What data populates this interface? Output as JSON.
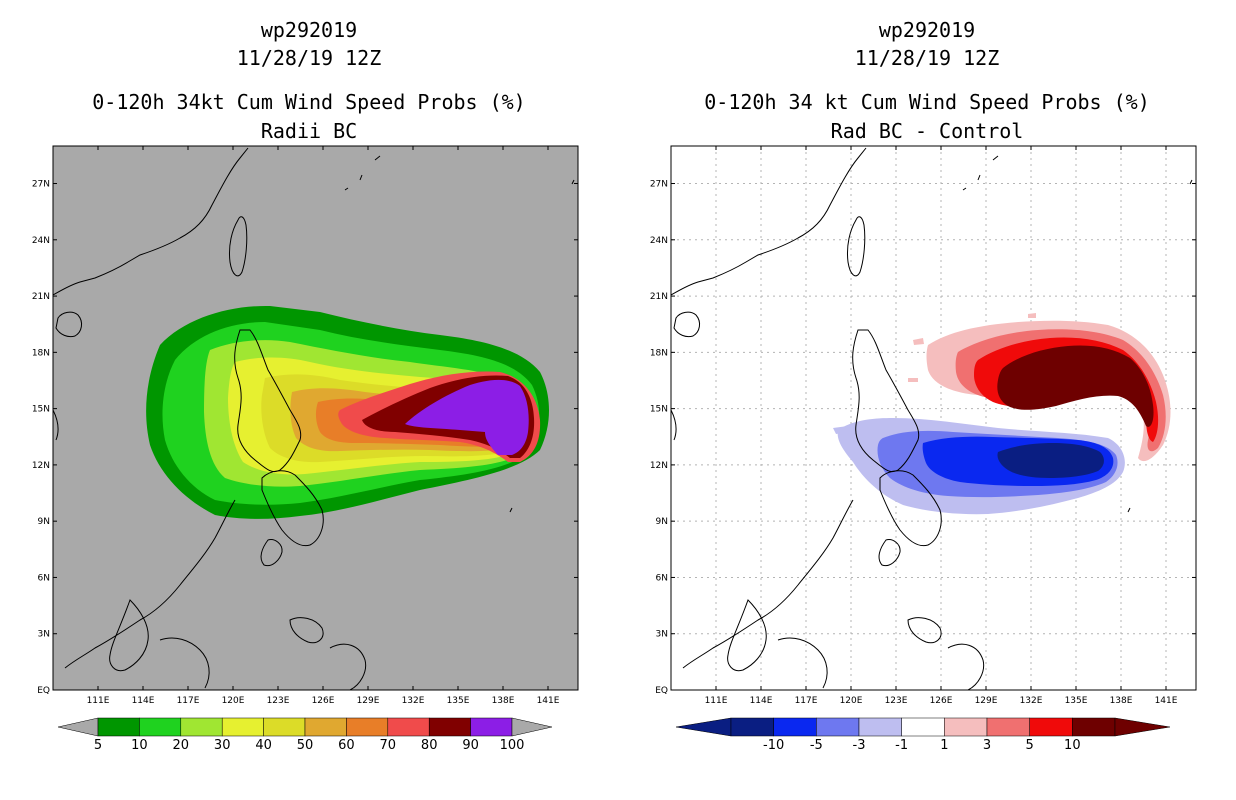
{
  "left": {
    "title_storm": "wp292019",
    "title_date": "11/28/19 12Z",
    "title_product": "0-120h 34kt Cum Wind Speed Probs (%)",
    "title_sub": "Radii BC",
    "background_color": "#a9a9a9",
    "colorbar": {
      "colors": [
        "#009600",
        "#1fd21f",
        "#a0e632",
        "#e6f030",
        "#dcdc28",
        "#e0a830",
        "#e87e28",
        "#f04b4b",
        "#800000",
        "#8c1ee6"
      ],
      "labels": [
        "5",
        "10",
        "20",
        "30",
        "40",
        "50",
        "60",
        "70",
        "80",
        "90",
        "100"
      ]
    }
  },
  "right": {
    "title_storm": "wp292019",
    "title_date": "11/28/19 12Z",
    "title_product": "0-120h 34 kt Cum Wind Speed Probs (%)",
    "title_sub": "Rad BC - Control",
    "background_color": "#ffffff",
    "colorbar": {
      "colors": [
        "#0a1e82",
        "#0a28f0",
        "#6e78f0",
        "#bebef0",
        "#ffffff",
        "#f5bebe",
        "#f07070",
        "#f00a0a",
        "#6e0000"
      ],
      "labels": [
        "-10",
        "-5",
        "-3",
        "-1",
        "1",
        "3",
        "5",
        "10"
      ]
    }
  },
  "axes": {
    "lon_labels": [
      "111E",
      "114E",
      "117E",
      "120E",
      "123E",
      "126E",
      "129E",
      "132E",
      "135E",
      "138E",
      "141E"
    ],
    "lat_labels": [
      "EQ",
      "3N",
      "6N",
      "9N",
      "12N",
      "15N",
      "18N",
      "21N",
      "24N",
      "27N"
    ]
  }
}
